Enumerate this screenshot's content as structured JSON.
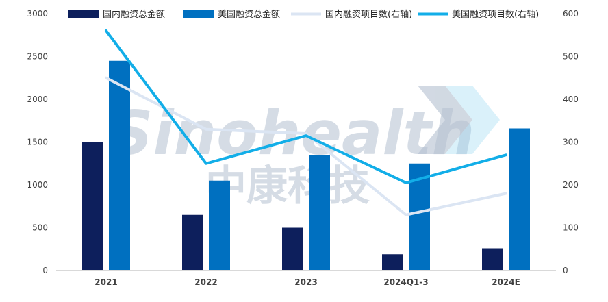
{
  "colors": {
    "domestic_amount": "#0d1f5c",
    "us_amount": "#0070c0",
    "domestic_count": "#dbe5f3",
    "us_count": "#12aee8",
    "axis_text": "#404040",
    "axis_line": "#d9d9d9",
    "watermark": "#b4c0d0",
    "watermark_chevron": "#8fd4f0"
  },
  "watermark": {
    "english": "Sinohealth",
    "chinese": "中康科技",
    "icon": "chevron-logo-icon"
  },
  "chart_data": {
    "type": "bar",
    "categories": [
      "2021",
      "2022",
      "2023",
      "2024Q1-3",
      "2024E"
    ],
    "ylim": [
      0,
      3000
    ],
    "y_ticks": [
      "0",
      "500",
      "1000",
      "1500",
      "2000",
      "2500",
      "3000"
    ],
    "y2lim": [
      0,
      600
    ],
    "y2_ticks": [
      "0",
      "100",
      "200",
      "300",
      "400",
      "500",
      "600"
    ],
    "grid": false,
    "legend_position": "top",
    "series": [
      {
        "name": "国内融资总金额",
        "kind": "bar",
        "axis": "left",
        "values": [
          1500,
          650,
          500,
          190,
          260
        ]
      },
      {
        "name": "美国融资总金额",
        "kind": "bar",
        "axis": "left",
        "values": [
          2450,
          1050,
          1350,
          1250,
          1660
        ]
      },
      {
        "name": "国内融资项目数(右轴)",
        "kind": "line",
        "axis": "right",
        "values": [
          450,
          330,
          320,
          130,
          180
        ]
      },
      {
        "name": "美国融资项目数(右轴)",
        "kind": "line",
        "axis": "right",
        "values": [
          560,
          250,
          315,
          205,
          270
        ]
      }
    ]
  }
}
